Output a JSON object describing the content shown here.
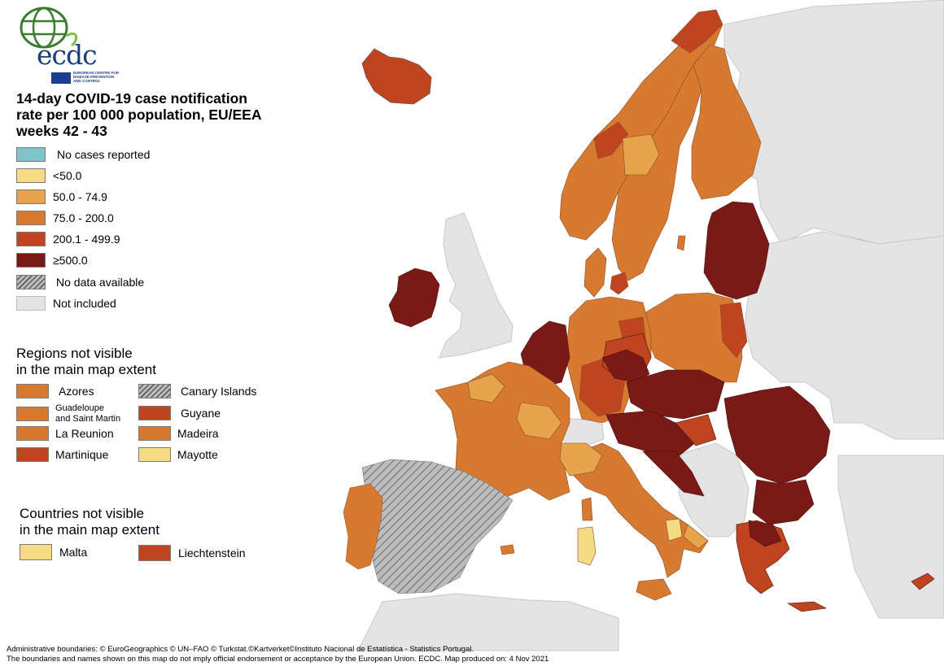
{
  "colors": {
    "sea": "#ffffff",
    "not_included": "#e4e4e4",
    "no_cases": "#7fc4c7",
    "lt50": "#f6db85",
    "c50_75": "#e6a54a",
    "c75_200": "#d77a30",
    "c200_500": "#bf4520",
    "gt500": "#7a1a17",
    "no_data_light": "#bcbcbc",
    "no_data_dark": "#5b5b5b",
    "border": "#7a5040"
  },
  "logo": {
    "word": "ecdc",
    "subtitle": "EUROPEAN CENTRE FOR DISEASE PREVENTION AND CONTROL"
  },
  "title": {
    "line1": "14-day COVID-19 case notification",
    "line2": "rate per 100 000 population, EU/EEA",
    "line3": "weeks 42 - 43"
  },
  "legend": {
    "items": [
      {
        "label": "No cases reported",
        "color": "#7fc4c7",
        "icon": "teal-swatch"
      },
      {
        "label": "<50.0",
        "color": "#f6db85",
        "icon": "pale-yellow-swatch"
      },
      {
        "label": "50.0 - 74.9",
        "color": "#e6a54a",
        "icon": "light-orange-swatch"
      },
      {
        "label": "75.0 - 200.0",
        "color": "#d77a30",
        "icon": "orange-swatch"
      },
      {
        "label": "200.1 - 499.9",
        "color": "#bf4520",
        "icon": "red-orange-swatch"
      },
      {
        "label": "≥500.0",
        "color": "#7a1a17",
        "icon": "dark-red-swatch"
      },
      {
        "label": "No data available",
        "color": "hatch",
        "icon": "hatched-swatch"
      },
      {
        "label": "Not included",
        "color": "#e4e4e4",
        "icon": "grey-swatch"
      }
    ]
  },
  "regions_not_visible": {
    "heading_line1": "Regions not visible",
    "heading_line2": "in the main map extent",
    "items": [
      {
        "label": "Azores",
        "color": "#d77a30"
      },
      {
        "label": "Canary Islands",
        "color": "hatch"
      },
      {
        "label": "Guadeloupe and Saint Martin",
        "label_line1": "Guadeloupe",
        "label_line2": "and Saint Martin",
        "color": "#d77a30"
      },
      {
        "label": "Guyane",
        "color": "#bf4520"
      },
      {
        "label": "La Reunion",
        "color": "#d77a30"
      },
      {
        "label": "Madeira",
        "color": "#d77a30"
      },
      {
        "label": "Martinique",
        "color": "#bf4520"
      },
      {
        "label": "Mayotte",
        "color": "#f6db85"
      }
    ]
  },
  "countries_not_visible": {
    "heading_line1": "Countries not visible",
    "heading_line2": "in the main map extent",
    "items": [
      {
        "label": "Malta",
        "color": "#f6db85"
      },
      {
        "label": "Liechtenstein",
        "color": "#bf4520"
      }
    ]
  },
  "footer": {
    "line1": "Administrative boundaries: © EuroGeographics © UN–FAO © Turkstat.©Kartverket©Instituto Nacional de Estatística - Statistics Portugal.",
    "line2": "The boundaries and names shown on this map do not imply official endorsement or acceptance by the European Union. ECDC. Map produced on: 4 Nov 2021"
  }
}
